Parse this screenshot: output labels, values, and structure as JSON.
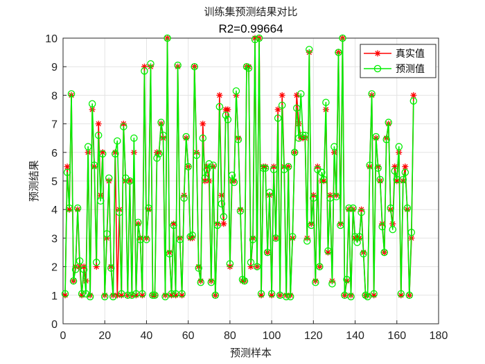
{
  "chart_data": {
    "type": "line",
    "title": "训练集预测结果对比",
    "subtitle": "R2=0.99664",
    "xlabel": "预测样本",
    "ylabel": "预测结果",
    "xlim": [
      0,
      180
    ],
    "ylim": [
      0,
      10
    ],
    "xticks": [
      0,
      20,
      40,
      60,
      80,
      100,
      120,
      140,
      160,
      180
    ],
    "yticks": [
      0,
      1,
      2,
      3,
      4,
      5,
      6,
      7,
      8,
      9,
      10
    ],
    "grid": true,
    "legend_position": "top-right",
    "series": [
      {
        "name": "真实值",
        "color": "#ff0000",
        "marker": "asterisk",
        "values": [
          1,
          5.5,
          4,
          8,
          1.5,
          2,
          4,
          2,
          1,
          2,
          1.5,
          6,
          1,
          7.5,
          5.5,
          2,
          7,
          4.5,
          6,
          1,
          3,
          5,
          2,
          1,
          6,
          1,
          4,
          1,
          7,
          5,
          1,
          5,
          1,
          6,
          1,
          3.5,
          3,
          1,
          9,
          3,
          4,
          9,
          1,
          1,
          6,
          6,
          7,
          6.5,
          1,
          10,
          2.5,
          1,
          3.5,
          1,
          9,
          3,
          1,
          4.5,
          6.5,
          5.5,
          3,
          3,
          9,
          6,
          2,
          1.5,
          7,
          5,
          5.5,
          5,
          1.5,
          5.5,
          1,
          3.5,
          8,
          4.5,
          3.5,
          7.5,
          7.5,
          2,
          5,
          5,
          8,
          6.5,
          4,
          1.5,
          1.5,
          9,
          9,
          2,
          3,
          10,
          2,
          10,
          1,
          5.5,
          5.5,
          2.5,
          4.5,
          1,
          5.5,
          3,
          7.5,
          1,
          8,
          5.5,
          1,
          5.5,
          1,
          3,
          6,
          8,
          7,
          6.5,
          6.5,
          6.5,
          3,
          9.5,
          3.5,
          4.5,
          1.5,
          5.5,
          2,
          5,
          5,
          7.5,
          2.5,
          4.5,
          1.5,
          6,
          4.5,
          9.5,
          3.5,
          10,
          1,
          1.5,
          4,
          1,
          4,
          3,
          3,
          3,
          4,
          2.5,
          1,
          1,
          5.5,
          8,
          1,
          6.5,
          5.5,
          5,
          3.5,
          2.5,
          6.5,
          7,
          4,
          3.5,
          5.5,
          5,
          6,
          1,
          5,
          5.5,
          4,
          1,
          3,
          8
        ]
      },
      {
        "name": "预测值",
        "color": "#00ee00",
        "marker": "circle",
        "values": [
          1.05,
          5.3,
          4.05,
          8.05,
          1.5,
          1.9,
          4.05,
          2.2,
          1.05,
          1.9,
          1.05,
          6.2,
          0.95,
          7.7,
          5.55,
          2.15,
          6.6,
          4.3,
          5.95,
          0.95,
          3.15,
          5.1,
          1.95,
          0.95,
          5.95,
          6.4,
          3.9,
          1.05,
          6.9,
          5.1,
          1,
          5,
          1,
          6.5,
          1.05,
          3.55,
          2.95,
          1.05,
          8.85,
          2.95,
          4.05,
          9.1,
          1,
          1,
          5.8,
          5.95,
          7.05,
          6.6,
          0.95,
          10,
          2.45,
          1.05,
          3.45,
          1.05,
          9.05,
          2.95,
          1.05,
          4.4,
          6.55,
          5.5,
          3.05,
          3.1,
          9,
          5.9,
          1.95,
          1.45,
          6.5,
          5.1,
          5.4,
          5.6,
          1.45,
          5.55,
          1,
          3.45,
          7.6,
          4.2,
          3.75,
          7.3,
          7.15,
          2.1,
          5.2,
          4.95,
          8.15,
          6.45,
          3.95,
          1.55,
          1.5,
          9,
          8.95,
          2.15,
          2.95,
          9.95,
          2,
          10,
          1.05,
          5.45,
          5.45,
          2.5,
          4.6,
          1.05,
          5.4,
          3,
          7.2,
          1,
          7.65,
          5.4,
          0.95,
          5.5,
          0.95,
          3.05,
          6,
          7.55,
          6.5,
          8.05,
          6.6,
          6.6,
          2.9,
          9.6,
          3.45,
          4.4,
          1.45,
          5.4,
          2,
          5.3,
          5.05,
          7.75,
          2.55,
          4.4,
          1.4,
          6.2,
          4.45,
          9.5,
          3.45,
          10,
          1,
          1.55,
          4.05,
          0.95,
          4.05,
          3.05,
          2.85,
          3.05,
          3.9,
          2.45,
          1,
          0.95,
          5.55,
          8.05,
          1.05,
          6.55,
          5.45,
          5.05,
          3.4,
          2.5,
          6.45,
          7.05,
          4.05,
          3.3,
          5.35,
          5.05,
          6.2,
          1.05,
          5.05,
          5.3,
          4.05,
          1,
          3.2,
          7.8
        ]
      }
    ]
  }
}
